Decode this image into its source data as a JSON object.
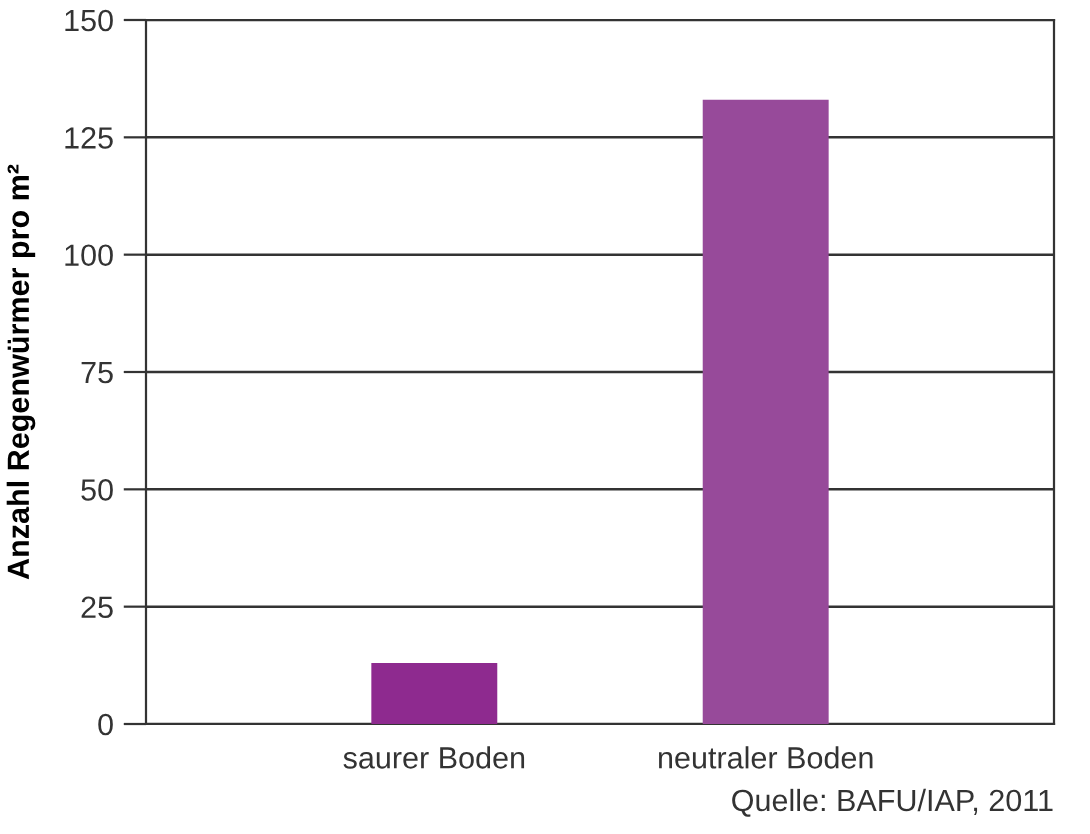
{
  "chart_data": {
    "type": "bar",
    "ylabel": "Anzahl Regenwürmer pro m²",
    "categories": [
      "saurer Boden",
      "neutraler Boden"
    ],
    "values": [
      13,
      133
    ],
    "colors": [
      "#8e2a8f",
      "#974a9a"
    ],
    "ylim": [
      0,
      150
    ],
    "yticks": [
      0,
      25,
      50,
      75,
      100,
      125,
      150
    ],
    "grid": "y",
    "legend": false,
    "annotations": [
      "Quelle: BAFU/IAP, 2011"
    ]
  }
}
